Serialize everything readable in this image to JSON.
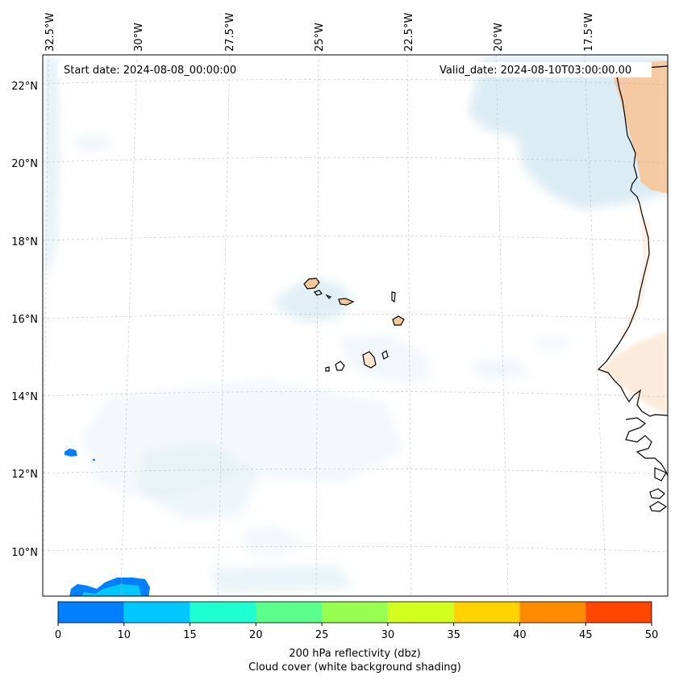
{
  "map": {
    "start_date": "Start date: 2024-08-08_00:00:00",
    "valid_date": "Valid_date: 2024-08-10T03:00:00.00",
    "lon_labels": [
      "32.5°W",
      "30°W",
      "27.5°W",
      "25°W",
      "22.5°W",
      "20°W",
      "17.5°W"
    ],
    "lat_labels": [
      "22°N",
      "20°N",
      "18°N",
      "16°N",
      "14°N",
      "12°N",
      "10°N"
    ],
    "land_color": "#f7c79a",
    "cloud_color": "#d6e9f2",
    "coast_color": "#000000",
    "grid": "dashed"
  },
  "colorbar": {
    "ticks": [
      "0",
      "10",
      "15",
      "20",
      "25",
      "30",
      "35",
      "40",
      "45",
      "50"
    ],
    "colors": [
      "#0080ff",
      "#00c8ff",
      "#1effd2",
      "#5aff8c",
      "#96ff50",
      "#d2ff1e",
      "#ffd200",
      "#ff8c00",
      "#ff4600"
    ],
    "label_line1": "200 hPa reflectivity (dbz)",
    "label_line2": "Cloud cover (white background shading)"
  }
}
